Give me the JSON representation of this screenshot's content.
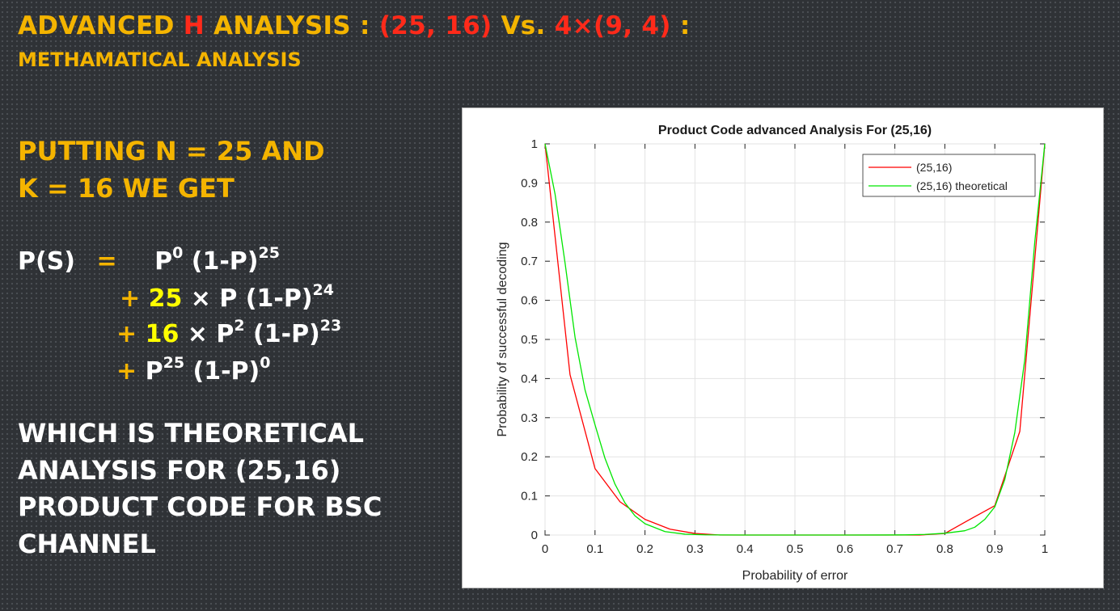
{
  "slide": {
    "title_part1": "ADVANCED ",
    "title_H": "H",
    "title_part2": " ANALYSIS : ",
    "title_red": "(25, 16)",
    "title_vs": " Vs. ",
    "title_red2": "4×(9, 4)",
    "title_colon": " :",
    "subtitle": "METHAMATICAL ANALYSIS",
    "putting_line1": "PUTTING N = 25 AND",
    "putting_line2": "K = 16 WE GET",
    "eq": {
      "lhs": "P(S)",
      "equals": "=",
      "t1_base": "P",
      "t1_exp": "0",
      "t1_mid": " (1-P)",
      "t1_exp2": "25",
      "plus": "+",
      "t2_coef": "25",
      "t2_rest": " × P (1-P)",
      "t2_exp": "24",
      "t3_coef": "16",
      "t3_base": " × P",
      "t3_exp": "2",
      "t3_mid": " (1-P)",
      "t3_exp2": "23",
      "t4_base": "P",
      "t4_exp": "25",
      "t4_mid": " (1-P)",
      "t4_exp2": "0"
    },
    "conclusion_lines": [
      "WHICH IS THEORETICAL",
      "ANALYSIS FOR (25,16)",
      "PRODUCT CODE FOR BSC",
      "CHANNEL"
    ]
  },
  "chart_data": {
    "type": "line",
    "title": "Product Code advanced Analysis For (25,16)",
    "xlabel": "Probability of error",
    "ylabel": "Probability of successful decoding",
    "xlim": [
      0,
      1
    ],
    "ylim": [
      0,
      1
    ],
    "xticks": [
      0,
      0.1,
      0.2,
      0.3,
      0.4,
      0.5,
      0.6,
      0.7,
      0.8,
      0.9,
      1
    ],
    "yticks": [
      0,
      0.1,
      0.2,
      0.3,
      0.4,
      0.5,
      0.6,
      0.7,
      0.8,
      0.9,
      1
    ],
    "xtick_labels": [
      "0",
      "0.1",
      "0.2",
      "0.3",
      "0.4",
      "0.5",
      "0.6",
      "0.7",
      "0.8",
      "0.9",
      "1"
    ],
    "ytick_labels": [
      "0",
      "0.1",
      "0.2",
      "0.3",
      "0.4",
      "0.5",
      "0.6",
      "0.7",
      "0.8",
      "0.9",
      "1"
    ],
    "grid": true,
    "legend_position": "top-right",
    "series": [
      {
        "name": "(25,16)",
        "color": "#ff0000",
        "x": [
          0,
          0.05,
          0.1,
          0.15,
          0.2,
          0.25,
          0.3,
          0.35,
          0.4,
          0.45,
          0.5,
          0.55,
          0.6,
          0.65,
          0.7,
          0.75,
          0.8,
          0.85,
          0.9,
          0.95,
          1
        ],
        "y": [
          1,
          0.41,
          0.17,
          0.085,
          0.04,
          0.015,
          0.004,
          0,
          0,
          0,
          0,
          0,
          0,
          0,
          0,
          0,
          0.004,
          0.04,
          0.075,
          0.265,
          1
        ]
      },
      {
        "name": "(25,16) theoretical",
        "color": "#00e600",
        "x": [
          0,
          0.02,
          0.04,
          0.06,
          0.08,
          0.1,
          0.12,
          0.14,
          0.16,
          0.18,
          0.2,
          0.24,
          0.28,
          0.32,
          0.4,
          0.5,
          0.6,
          0.68,
          0.72,
          0.76,
          0.8,
          0.84,
          0.86,
          0.88,
          0.9,
          0.92,
          0.94,
          0.96,
          0.98,
          1
        ],
        "y": [
          1,
          0.872,
          0.696,
          0.506,
          0.371,
          0.282,
          0.196,
          0.13,
          0.082,
          0.049,
          0.029,
          0.0087,
          0.0022,
          0.0005,
          0,
          0,
          0,
          0.0001,
          0.0004,
          0.0016,
          0.0045,
          0.011,
          0.02,
          0.04,
          0.072,
          0.142,
          0.262,
          0.449,
          0.75,
          1
        ]
      }
    ]
  }
}
